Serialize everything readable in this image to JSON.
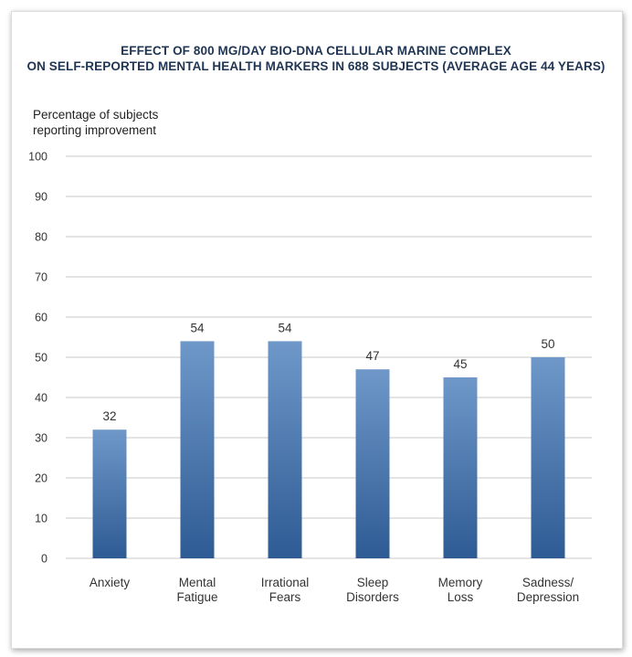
{
  "chart_data": {
    "type": "bar",
    "title_line1": "EFFECT OF 800 MG/DAY BIO-DNA CELLULAR MARINE COMPLEX",
    "title_line2": "ON SELF-REPORTED MENTAL HEALTH MARKERS IN 688 SUBJECTS (AVERAGE AGE 44 YEARS)",
    "ylabel": "Percentage of subjects\nreporting improvement",
    "xlabel": "",
    "categories": [
      [
        "Anxiety"
      ],
      [
        "Mental",
        "Fatigue"
      ],
      [
        "Irrational",
        "Fears"
      ],
      [
        "Sleep",
        "Disorders"
      ],
      [
        "Memory",
        "Loss"
      ],
      [
        "Sadness/",
        "Depression"
      ]
    ],
    "values": [
      32,
      54,
      54,
      47,
      45,
      50
    ],
    "ylim": [
      0,
      100
    ],
    "yticks": [
      0,
      10,
      20,
      30,
      40,
      50,
      60,
      70,
      80,
      90,
      100
    ],
    "grid": true,
    "colors": {
      "bar_top": "#6f98c9",
      "bar_bottom": "#2e5b94",
      "grid": "#c8c8c8",
      "title": "#1f3553"
    }
  }
}
